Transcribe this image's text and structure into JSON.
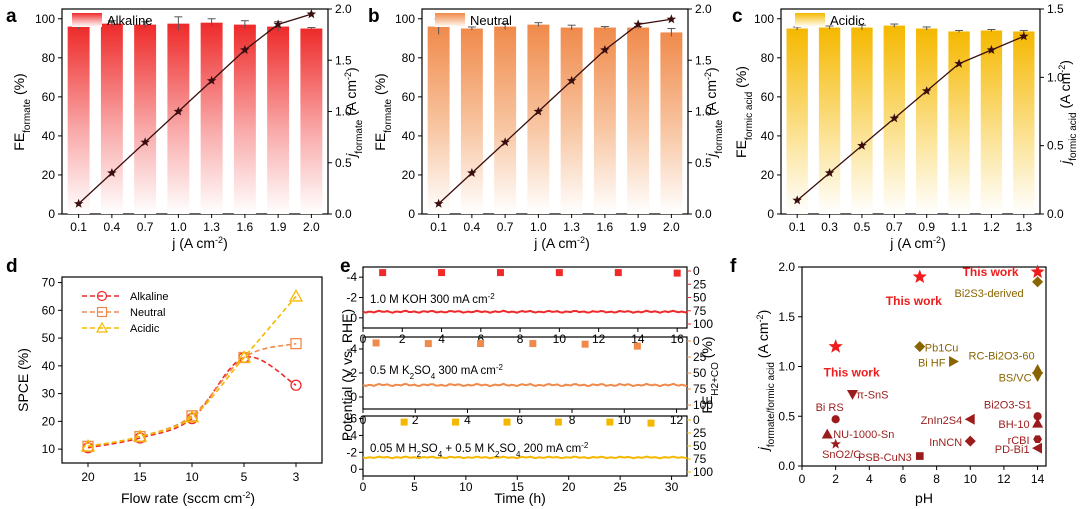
{
  "colors": {
    "alkaline": "#ee2a2a",
    "neutral": "#f08a4b",
    "acidic": "#f5b800",
    "line": "#3a0e0e",
    "ref": "#9b1c1c",
    "bs": "#8a6400",
    "tw": "#ee1c1c"
  },
  "panels": {
    "a": {
      "label": "a",
      "legend": "Alkaline",
      "xlabel_main": "j (A cm",
      "xlabel_sup": "-2",
      "xlabel_close": ")",
      "yleft_main": "FE",
      "yleft_sub": "formate",
      "yleft_unit": " (%)",
      "yright_main": "j",
      "yright_sub": "formate",
      "yright_unit": " (A cm",
      "yright_sup": "-2",
      "yright_close": ")"
    },
    "b": {
      "label": "b",
      "legend": "Neutral",
      "xlabel_main": "j (A cm",
      "xlabel_sup": "-2",
      "xlabel_close": ")",
      "yleft_main": "FE",
      "yleft_sub": "formate",
      "yleft_unit": " (%)",
      "yright_main": "j",
      "yright_sub": "formate",
      "yright_unit": " (A cm",
      "yright_sup": "-2",
      "yright_close": ")"
    },
    "c": {
      "label": "c",
      "legend": "Acidic",
      "xlabel_main": "j (A cm",
      "xlabel_sup": "-2",
      "xlabel_close": ")",
      "yleft_main": "FE",
      "yleft_sub": "formic acid",
      "yleft_unit": " (%)",
      "yright_main": "j",
      "yright_sub": "formic acid",
      "yright_unit": " (A cm",
      "yright_sup": "-2",
      "yright_close": ")"
    },
    "d": {
      "label": "d",
      "xlabel_main": "Flow rate (sccm cm",
      "xlabel_sup": "-2",
      "xlabel_close": ")",
      "ylabel": "SPCE (%)"
    },
    "e": {
      "label": "e",
      "ylabel": "Potential (V vs. RHE)",
      "yright_main": "FE",
      "yright_sub": "H2+CO",
      "yright_unit": " (%)",
      "xlabel": "Time (h)",
      "sub1": {
        "p1": "1.0 M KOH  300 mA cm",
        "s1": "-2"
      },
      "sub2": {
        "p1": "0.5 M K",
        "s1": "2",
        "p2": "SO",
        "s2": "4",
        "p3": "   300 mA cm",
        "s3": "-2"
      },
      "sub3": {
        "p1": "0.05 M H",
        "s1": "2",
        "p2": "SO",
        "s2": "4",
        "p3": " + 0.5 M K",
        "s3": "2",
        "p4": "SO",
        "s4": "4",
        "p5": "   200 mA cm",
        "s5": "-2"
      }
    },
    "f": {
      "label": "f",
      "xlabel": "pH",
      "ylabel_main": "j",
      "ylabel_sub": "formate/formic acid",
      "ylabel_unit": " (A cm",
      "ylabel_sup": "-2",
      "ylabel_close": ")"
    }
  },
  "chart_data": [
    {
      "id": "a",
      "type": "bar",
      "title": "Alkaline",
      "categories": [
        "0.1",
        "0.4",
        "0.7",
        "1.0",
        "1.3",
        "1.6",
        "1.9",
        "2.0"
      ],
      "values": [
        96,
        97.5,
        97,
        97.5,
        98,
        97,
        96,
        95
      ],
      "errors": [
        1.5,
        1.5,
        1.5,
        3.5,
        2.0,
        2.0,
        2.5,
        0.5
      ],
      "line": [
        0.1,
        0.4,
        0.7,
        1.0,
        1.3,
        1.6,
        1.85,
        1.95
      ],
      "xlabel": "j (A cm-2)",
      "ylabel": "FEformate (%)",
      "ylim": [
        0,
        105
      ],
      "y2label": "jformate (A cm-2)",
      "y2lim": [
        0,
        2.0
      ]
    },
    {
      "id": "b",
      "type": "bar",
      "title": "Neutral",
      "categories": [
        "0.1",
        "0.4",
        "0.7",
        "1.0",
        "1.3",
        "1.6",
        "1.9",
        "2.0"
      ],
      "values": [
        96,
        95,
        96,
        97,
        95.5,
        95.5,
        95.5,
        93
      ],
      "errors": [
        4.0,
        0.8,
        1.5,
        1.0,
        1.2,
        0.5,
        0.5,
        2.0
      ],
      "line": [
        0.1,
        0.4,
        0.7,
        1.0,
        1.3,
        1.6,
        1.85,
        1.9
      ],
      "xlabel": "j (A cm-2)",
      "ylabel": "FEformate (%)",
      "ylim": [
        0,
        105
      ],
      "y2label": "jformate (A cm-2)",
      "y2lim": [
        0,
        2.0
      ]
    },
    {
      "id": "c",
      "type": "bar",
      "title": "Acidic",
      "categories": [
        "0.1",
        "0.3",
        "0.5",
        "0.7",
        "0.9",
        "1.1",
        "1.2",
        "1.3"
      ],
      "values": [
        95,
        95.5,
        95.5,
        96.5,
        95,
        93.5,
        94,
        93.5
      ],
      "errors": [
        0.8,
        0.8,
        1.2,
        0.8,
        0.8,
        0.5,
        0.5,
        0.5
      ],
      "line": [
        0.1,
        0.3,
        0.5,
        0.7,
        0.9,
        1.1,
        1.2,
        1.3
      ],
      "xlabel": "j (A cm-2)",
      "ylabel": "FEformic acid (%)",
      "ylim": [
        0,
        105
      ],
      "y2label": "jformic acid (A cm-2)",
      "y2lim": [
        0,
        1.5
      ]
    },
    {
      "id": "d",
      "type": "line",
      "categories": [
        "20",
        "15",
        "10",
        "5",
        "3"
      ],
      "series": [
        {
          "name": "Alkaline",
          "values": [
            10.5,
            14,
            21,
            43,
            33
          ]
        },
        {
          "name": "Neutral",
          "values": [
            11,
            14.5,
            22,
            43,
            48
          ]
        },
        {
          "name": "Acidic",
          "values": [
            11,
            14.5,
            21.5,
            43,
            65
          ]
        }
      ],
      "xlabel": "Flow rate (sccm cm-2)",
      "ylabel": "SPCE (%)",
      "ylim": [
        5,
        72
      ],
      "legend": "top-left"
    },
    {
      "id": "e",
      "type": "line",
      "xlabel": "Time (h)",
      "ylabel": "Potential (V vs. RHE)",
      "y2label": "FEH2+CO (%)",
      "subplots": [
        {
          "name": "1.0 M KOH 300 mA cm-2",
          "xlim": [
            0,
            16.5
          ],
          "xticks": [
            0,
            2,
            4,
            6,
            8,
            10,
            12,
            14,
            16
          ],
          "potential": -0.6,
          "plim": [
            1,
            -5
          ],
          "pticks": [
            -4,
            -2,
            0
          ],
          "fe_x": [
            1,
            4,
            7,
            10,
            13,
            16
          ],
          "fe": [
            3,
            3,
            3,
            3,
            3,
            4
          ],
          "fetick": [
            "0",
            "25",
            "50",
            "75",
            "100"
          ]
        },
        {
          "name": "0.5 M K2SO4 300 mA cm-2",
          "xlim": [
            0,
            12.4
          ],
          "xticks": [
            0,
            2,
            4,
            6,
            8,
            10,
            12
          ],
          "potential": -1.0,
          "plim": [
            1,
            -5
          ],
          "pticks": [
            -4,
            -2,
            0
          ],
          "fe_x": [
            0.5,
            2.5,
            4.5,
            6.5,
            8.5,
            10.5
          ],
          "fe": [
            3,
            4,
            4,
            4,
            5,
            8
          ],
          "fetick": [
            "0",
            "25",
            "50",
            "75",
            "100"
          ]
        },
        {
          "name": "0.05 M H2SO4 + 0.5 M K2SO4 200 mA cm-2",
          "xlim": [
            0,
            31.5
          ],
          "xticks": [
            0,
            5,
            10,
            15,
            20,
            25,
            30
          ],
          "potential": -1.4,
          "plim": [
            0.8,
            -6.3
          ],
          "pticks": [
            -6,
            -4,
            -2,
            0
          ],
          "fe_x": [
            4,
            9,
            14,
            19,
            24,
            28
          ],
          "fe": [
            4,
            4,
            4,
            4,
            4,
            6
          ],
          "fetick": [
            "0",
            "25",
            "50",
            "75",
            "100"
          ]
        }
      ]
    },
    {
      "id": "f",
      "type": "scatter",
      "xlabel": "pH",
      "ylabel": "jformate/formic acid (A cm-2)",
      "xlim": [
        0,
        14.5
      ],
      "ylim": [
        0,
        2.0
      ],
      "xticks": [
        "0",
        "2",
        "4",
        "6",
        "8",
        "10",
        "12",
        "14"
      ],
      "yticks": [
        "0.0",
        "0.5",
        "1.0",
        "1.5",
        "2.0"
      ],
      "points": [
        {
          "label": "This work",
          "x": 2,
          "y": 1.2,
          "marker": "star",
          "group": "tw"
        },
        {
          "label": "This work",
          "x": 7,
          "y": 1.9,
          "marker": "star",
          "group": "tw"
        },
        {
          "label": "This work",
          "x": 14,
          "y": 1.95,
          "marker": "star",
          "group": "tw"
        },
        {
          "label": "Bi2S3-derived",
          "x": 14,
          "y": 1.85,
          "marker": "diamond",
          "group": "bs"
        },
        {
          "label": "Pb1Cu",
          "x": 7,
          "y": 1.2,
          "marker": "diamond",
          "group": "bs"
        },
        {
          "label": "Bi HF",
          "x": 9,
          "y": 1.05,
          "marker": "triR",
          "group": "bs"
        },
        {
          "label": "RC-Bi2O3-60",
          "x": 14,
          "y": 0.97,
          "marker": "triU",
          "group": "bs"
        },
        {
          "label": "BS/VC",
          "x": 14,
          "y": 0.9,
          "marker": "triD",
          "group": "bs"
        },
        {
          "label": "π-SnS",
          "x": 3,
          "y": 0.72,
          "marker": "triD",
          "group": "ref"
        },
        {
          "label": "Bi2O3-S1",
          "x": 14,
          "y": 0.5,
          "marker": "circle",
          "group": "ref"
        },
        {
          "label": "Bi RS",
          "x": 2,
          "y": 0.47,
          "marker": "circle",
          "group": "ref"
        },
        {
          "label": "ZnIn2S4",
          "x": 10,
          "y": 0.47,
          "marker": "triL",
          "group": "ref"
        },
        {
          "label": "BH-10",
          "x": 14,
          "y": 0.43,
          "marker": "triU",
          "group": "ref"
        },
        {
          "label": "NU-1000-Sn",
          "x": 1.5,
          "y": 0.32,
          "marker": "triU",
          "group": "ref"
        },
        {
          "label": "InNCN",
          "x": 10,
          "y": 0.25,
          "marker": "diamond",
          "group": "ref"
        },
        {
          "label": "rCBI",
          "x": 14,
          "y": 0.27,
          "marker": "hex",
          "group": "ref"
        },
        {
          "label": "PD-Bi1",
          "x": 14,
          "y": 0.18,
          "marker": "triL",
          "group": "ref"
        },
        {
          "label": "SnO2/C",
          "x": 2,
          "y": 0.22,
          "marker": "star",
          "group": "ref"
        },
        {
          "label": "PSB-CuN3",
          "x": 7,
          "y": 0.1,
          "marker": "square",
          "group": "ref"
        }
      ]
    }
  ]
}
